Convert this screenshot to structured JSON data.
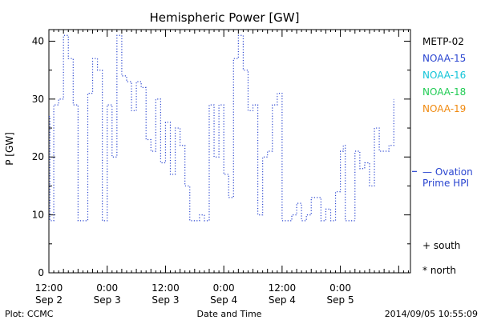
{
  "chart_data": {
    "type": "line",
    "title": "Hemispheric Power [GW]",
    "xlabel": "Date and Time",
    "ylabel": "P [GW]",
    "ylim": [
      0,
      42
    ],
    "xlim": [
      0,
      66
    ],
    "x_unit": "hours since 2014-09-02 12:00",
    "y_ticks": [
      0,
      10,
      20,
      30,
      40
    ],
    "x_ticks": [
      {
        "x": 0,
        "time": "12:00",
        "date": "Sep 2"
      },
      {
        "x": 12,
        "time": "0:00",
        "date": "Sep 3"
      },
      {
        "x": 24,
        "time": "12:00",
        "date": "Sep 3"
      },
      {
        "x": 36,
        "time": "0:00",
        "date": "Sep 4"
      },
      {
        "x": 48,
        "time": "12:00",
        "date": "Sep 4"
      },
      {
        "x": 60,
        "time": "0:00",
        "date": "Sep 5"
      }
    ],
    "series": [
      {
        "name": "NOAA-15",
        "color": "#2a45d0",
        "style": "dotted-step",
        "points": [
          [
            -0.3,
            27
          ],
          [
            0.2,
            9
          ],
          [
            1.0,
            29
          ],
          [
            2.0,
            30
          ],
          [
            3.0,
            41
          ],
          [
            4.0,
            37
          ],
          [
            5.0,
            29
          ],
          [
            6.0,
            9
          ],
          [
            8.0,
            31
          ],
          [
            9.0,
            37
          ],
          [
            10.0,
            35
          ],
          [
            11.0,
            9
          ],
          [
            12.0,
            29
          ],
          [
            13.0,
            20
          ],
          [
            14.0,
            41
          ],
          [
            15.0,
            34
          ],
          [
            16.0,
            33
          ],
          [
            17.0,
            28
          ],
          [
            18.0,
            33
          ],
          [
            19.0,
            32
          ],
          [
            20.0,
            23
          ],
          [
            21.0,
            21
          ],
          [
            22.0,
            30
          ],
          [
            23.0,
            19
          ],
          [
            24.0,
            26
          ],
          [
            25.0,
            17
          ],
          [
            26.0,
            25
          ],
          [
            27.0,
            22
          ],
          [
            28.0,
            15
          ],
          [
            29.0,
            9
          ],
          [
            31.0,
            10
          ],
          [
            32.0,
            9
          ],
          [
            33.0,
            29
          ],
          [
            34.0,
            20
          ],
          [
            35.0,
            29
          ],
          [
            36.0,
            17
          ],
          [
            37.0,
            13
          ],
          [
            38.0,
            37
          ],
          [
            39.0,
            41
          ],
          [
            40.0,
            35
          ],
          [
            41.0,
            28
          ],
          [
            42.0,
            29
          ],
          [
            43.0,
            10
          ],
          [
            44.0,
            20
          ],
          [
            45.0,
            21
          ],
          [
            46.0,
            29
          ],
          [
            47.0,
            31
          ],
          [
            48.0,
            9
          ],
          [
            50.0,
            10
          ],
          [
            51.0,
            12
          ],
          [
            52.0,
            9
          ],
          [
            53.0,
            10
          ],
          [
            54.0,
            13
          ],
          [
            56.0,
            9
          ],
          [
            57.0,
            11
          ],
          [
            58.0,
            9
          ],
          [
            59.0,
            14
          ],
          [
            60.0,
            21
          ],
          [
            60.6,
            22
          ],
          [
            61.0,
            9
          ],
          [
            63.0,
            21
          ],
          [
            64.0,
            18
          ],
          [
            65.0,
            19
          ],
          [
            66.0,
            15
          ],
          [
            67.0,
            25
          ],
          [
            68.0,
            21
          ],
          [
            70.0,
            22
          ],
          [
            71.0,
            30
          ]
        ]
      }
    ],
    "legend": {
      "placement": "right",
      "entries": [
        {
          "label": "METP-02",
          "color": "#000000"
        },
        {
          "label": "NOAA-15",
          "color": "#2a45d0"
        },
        {
          "label": "NOAA-16",
          "color": "#12c4d8"
        },
        {
          "label": "NOAA-18",
          "color": "#22cc55"
        },
        {
          "label": "NOAA-19",
          "color": "#f08a10"
        }
      ],
      "ovation_line1": "— Ovation",
      "ovation_line2": "Prime HPI",
      "ovation_color": "#2a45d0",
      "south": "+ south",
      "north": "* north"
    }
  },
  "footer": {
    "left": "Plot: CCMC",
    "center": "Date and Time",
    "right": "2014/09/05 10:55:09"
  },
  "side_marker": {
    "y": 17.5,
    "color": "#2a45d0"
  }
}
